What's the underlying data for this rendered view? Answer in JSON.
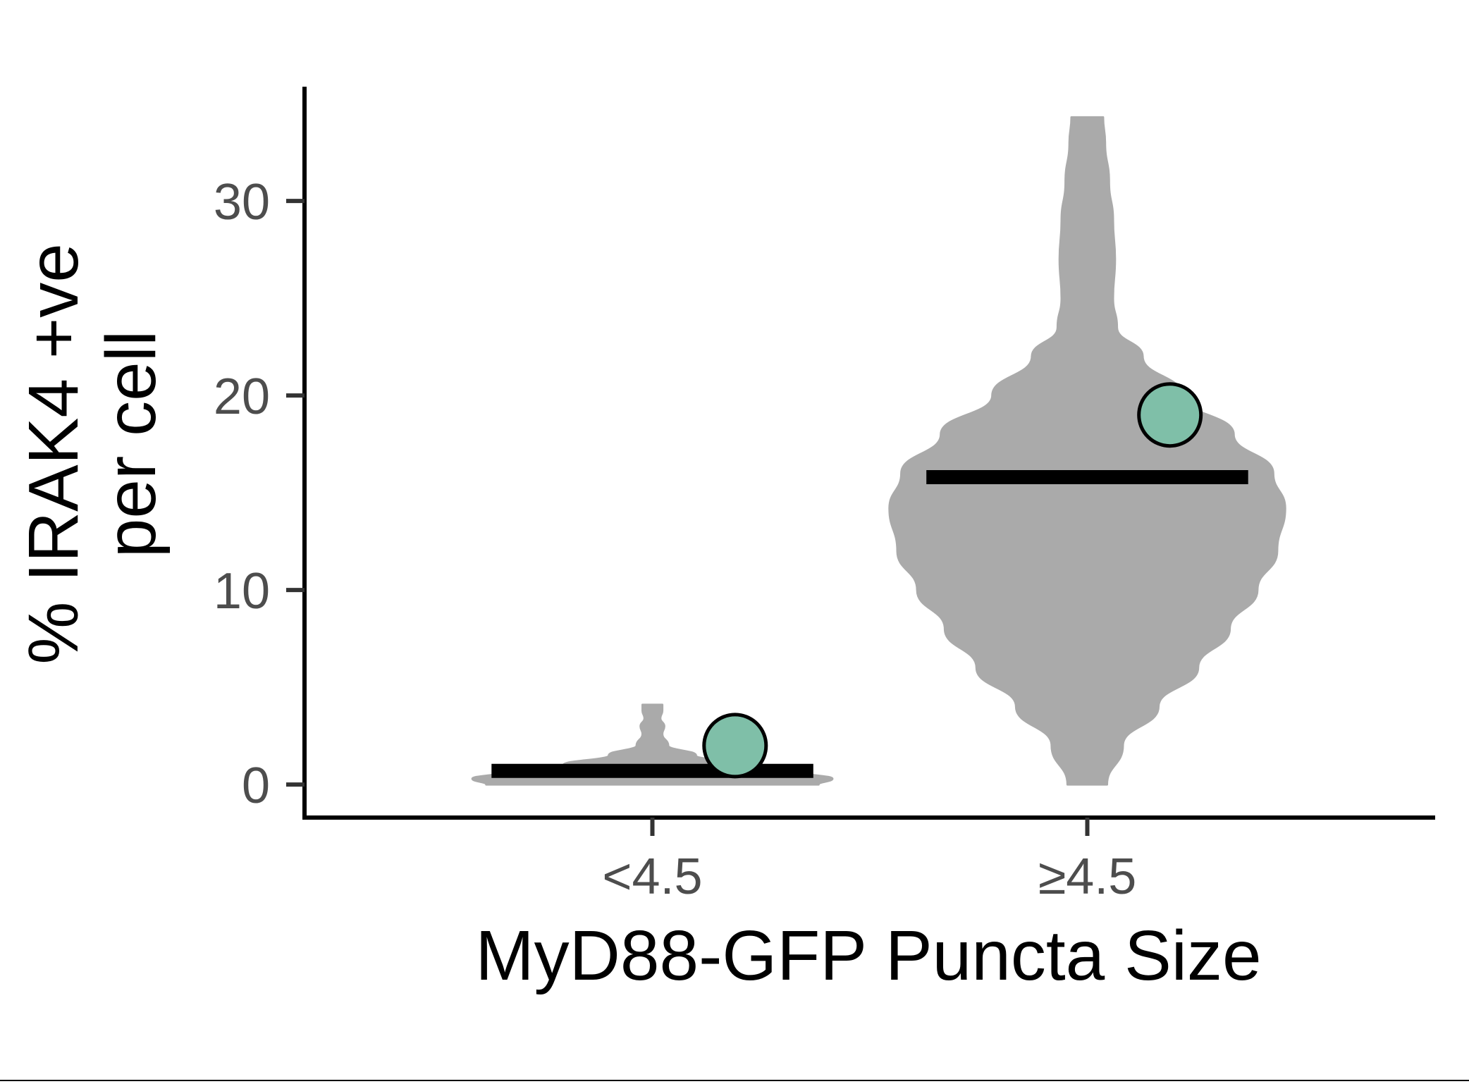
{
  "chart_data": {
    "type": "violin",
    "xlabel": "MyD88-GFP Puncta Size",
    "ylabel_lines": [
      "% IRAK4 +ve",
      "per cell"
    ],
    "categories": [
      "<4.5",
      "≥4.5"
    ],
    "y_ticks": [
      "0",
      "10",
      "20",
      "30"
    ],
    "ylim": [
      -1.7,
      35.8
    ],
    "grid": false,
    "legend": "none",
    "colors": {
      "violin_fill": "#aaaaaa",
      "point_fill": "#7fbfa8",
      "point_stroke": "#000000",
      "median_line": "#000000",
      "axis": "#000000",
      "tick": "#333333",
      "tick_label": "#4d4d4d"
    },
    "groups": [
      {
        "category": "<4.5",
        "median": 0.7,
        "mean_point": 2.0,
        "violin_profile": [
          {
            "y": 0.0,
            "w": 0.84
          },
          {
            "y": 0.3,
            "w": 0.91
          },
          {
            "y": 0.6,
            "w": 0.78
          },
          {
            "y": 1.0,
            "w": 0.45
          },
          {
            "y": 1.5,
            "w": 0.22
          },
          {
            "y": 2.0,
            "w": 0.08
          },
          {
            "y": 2.6,
            "w": 0.05
          },
          {
            "y": 3.0,
            "w": 0.06
          },
          {
            "y": 3.4,
            "w": 0.04
          },
          {
            "y": 3.8,
            "w": 0.05
          },
          {
            "y": 4.1,
            "w": 0.05
          }
        ]
      },
      {
        "category": "≥4.5",
        "median": 15.8,
        "mean_point": 19.0,
        "violin_profile": [
          {
            "y": 0.0,
            "w": 0.1
          },
          {
            "y": 2.0,
            "w": 0.18
          },
          {
            "y": 4.0,
            "w": 0.36
          },
          {
            "y": 6.0,
            "w": 0.56
          },
          {
            "y": 8.0,
            "w": 0.72
          },
          {
            "y": 10.0,
            "w": 0.86
          },
          {
            "y": 12.0,
            "w": 0.96
          },
          {
            "y": 14.2,
            "w": 1.0
          },
          {
            "y": 16.0,
            "w": 0.94
          },
          {
            "y": 18.0,
            "w": 0.74
          },
          {
            "y": 20.0,
            "w": 0.48
          },
          {
            "y": 22.0,
            "w": 0.28
          },
          {
            "y": 23.5,
            "w": 0.15
          },
          {
            "y": 25.0,
            "w": 0.13
          },
          {
            "y": 27.0,
            "w": 0.14
          },
          {
            "y": 29.0,
            "w": 0.13
          },
          {
            "y": 31.0,
            "w": 0.11
          },
          {
            "y": 33.0,
            "w": 0.09
          },
          {
            "y": 34.3,
            "w": 0.08
          }
        ]
      }
    ]
  }
}
